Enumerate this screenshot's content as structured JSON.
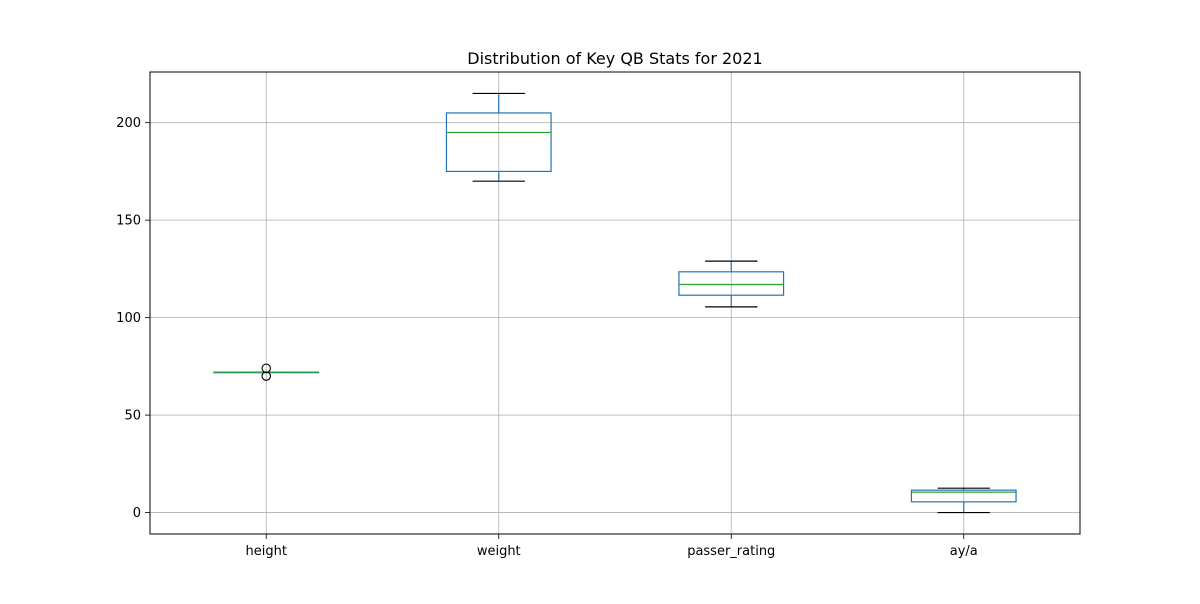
{
  "chart_data": {
    "type": "box",
    "title": "Distribution of Key QB Stats for 2021",
    "xlabel": "",
    "ylabel": "",
    "ylim": [
      -11,
      226
    ],
    "yticks": [
      0,
      50,
      100,
      150,
      200
    ],
    "grid": true,
    "categories": [
      "height",
      "weight",
      "passer_rating",
      "ay/a"
    ],
    "series": [
      {
        "values": [
          {
            "whisker_low": 72,
            "q1": 72,
            "median": 72,
            "q3": 72,
            "whisker_high": 72,
            "outliers": [
              70,
              74
            ]
          },
          {
            "whisker_low": 170,
            "q1": 175,
            "median": 195,
            "q3": 205,
            "whisker_high": 215,
            "outliers": []
          },
          {
            "whisker_low": 105.5,
            "q1": 111.5,
            "median": 117,
            "q3": 123.5,
            "whisker_high": 129,
            "outliers": []
          },
          {
            "whisker_low": 0,
            "q1": 5.5,
            "median": 10.5,
            "q3": 11.5,
            "whisker_high": 12.5,
            "outliers": []
          }
        ]
      }
    ],
    "colors": {
      "box": "#1f77b4",
      "median": "#2ca02c",
      "whisker_cap": "#000000",
      "grid": "#b0b0b0",
      "axes": "#000000"
    }
  }
}
